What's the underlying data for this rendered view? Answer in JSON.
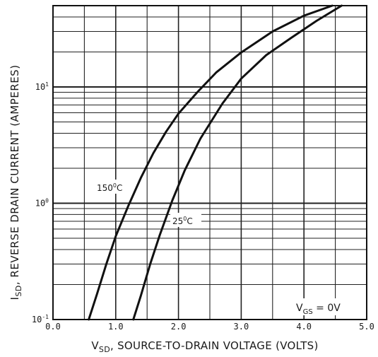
{
  "chart_data": {
    "type": "line",
    "x_scale": "linear",
    "y_scale": "log",
    "xlim": [
      0.0,
      5.0
    ],
    "ylim": [
      0.1,
      50
    ],
    "x_ticks": [
      "0.0",
      "1.0",
      "2.0",
      "3.0",
      "4.0",
      "5.0"
    ],
    "y_ticks": [
      {
        "value": 10,
        "base": "10",
        "exp": "1"
      },
      {
        "value": 1,
        "base": "10",
        "exp": "0"
      },
      {
        "value": 0.1,
        "base": "10",
        "exp": "-1"
      }
    ],
    "grid": true,
    "ylabel": {
      "main": "I",
      "sub": "SD",
      "rest": ", REVERSE DRAIN CURRENT (AMPERES)"
    },
    "xlabel": {
      "main": "V",
      "sub": "SD",
      "rest": ", SOURCE-TO-DRAIN VOLTAGE (VOLTS)"
    },
    "condition": {
      "main": "V",
      "sub": "GS",
      "rest": " = 0V"
    },
    "series": [
      {
        "name": "150°C",
        "label_parts": {
          "num": "150",
          "deg": "0",
          "unit": "C"
        },
        "x": [
          0.57,
          0.7,
          0.85,
          1.0,
          1.2,
          1.4,
          1.6,
          1.8,
          2.0,
          2.3,
          2.6,
          3.0,
          3.5,
          4.0,
          4.45
        ],
        "y": [
          0.1,
          0.165,
          0.3,
          0.52,
          0.95,
          1.65,
          2.7,
          4.1,
          5.9,
          9.0,
          13.3,
          19.8,
          30.0,
          41.0,
          50
        ]
      },
      {
        "name": "25°C",
        "label_parts": {
          "num": "25",
          "deg": "0",
          "unit": "C"
        },
        "x": [
          1.28,
          1.4,
          1.55,
          1.7,
          1.9,
          2.1,
          2.35,
          2.7,
          3.0,
          3.4,
          3.8,
          4.2,
          4.6
        ],
        "y": [
          0.1,
          0.16,
          0.3,
          0.53,
          1.05,
          1.92,
          3.6,
          7.2,
          11.8,
          18.8,
          26.5,
          37.0,
          50
        ]
      }
    ]
  }
}
